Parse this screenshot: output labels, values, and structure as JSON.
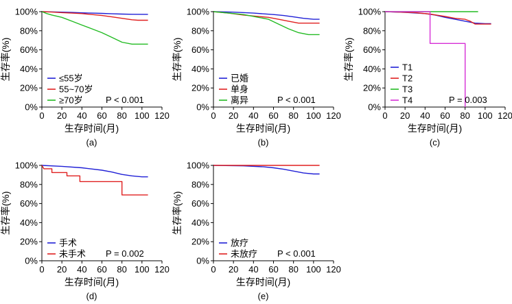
{
  "chart_data": [
    {
      "id": "a",
      "type": "line",
      "panel_label": "(a)",
      "xlabel": "生存时间(月)",
      "ylabel": "生存率(%)",
      "xlim": [
        0,
        120
      ],
      "ylim": [
        0,
        100
      ],
      "x_ticks": [
        "0",
        "20",
        "40",
        "60",
        "80",
        "100",
        "120"
      ],
      "y_ticks": [
        "0%",
        "20%",
        "40%",
        "60%",
        "80%",
        "100%"
      ],
      "p_value": "P < 0.001",
      "legend_position": "bottom-left",
      "series": [
        {
          "name": "≤55岁",
          "color": "#1f1fd6",
          "points": [
            [
              0,
              100
            ],
            [
              10,
              99.8
            ],
            [
              20,
              99.5
            ],
            [
              30,
              99.2
            ],
            [
              40,
              98.8
            ],
            [
              50,
              98.5
            ],
            [
              60,
              98.2
            ],
            [
              70,
              97.8
            ],
            [
              80,
              97.5
            ],
            [
              90,
              97.3
            ],
            [
              106,
              97.2
            ]
          ]
        },
        {
          "name": "55~70岁",
          "color": "#e01f1f",
          "points": [
            [
              0,
              100
            ],
            [
              10,
              99.6
            ],
            [
              20,
              99
            ],
            [
              30,
              98.5
            ],
            [
              40,
              98
            ],
            [
              50,
              97
            ],
            [
              60,
              96
            ],
            [
              70,
              94.5
            ],
            [
              80,
              93
            ],
            [
              90,
              91.5
            ],
            [
              96,
              91
            ],
            [
              106,
              91
            ]
          ]
        },
        {
          "name": "≥70岁",
          "color": "#22bb22",
          "points": [
            [
              0,
              100
            ],
            [
              5,
              98
            ],
            [
              10,
              96.5
            ],
            [
              20,
              94
            ],
            [
              30,
              90
            ],
            [
              40,
              86
            ],
            [
              50,
              82
            ],
            [
              60,
              78
            ],
            [
              70,
              73
            ],
            [
              80,
              68
            ],
            [
              90,
              66
            ],
            [
              106,
              66
            ]
          ]
        }
      ]
    },
    {
      "id": "b",
      "type": "line",
      "panel_label": "(b)",
      "xlabel": "生存时间(月)",
      "ylabel": "生存率(%)",
      "xlim": [
        0,
        120
      ],
      "ylim": [
        0,
        100
      ],
      "x_ticks": [
        "0",
        "20",
        "40",
        "60",
        "80",
        "100",
        "120"
      ],
      "y_ticks": [
        "0%",
        "20%",
        "40%",
        "60%",
        "80%",
        "100%"
      ],
      "p_value": "P < 0.001",
      "legend_position": "bottom-left",
      "series": [
        {
          "name": "已婚",
          "color": "#1f1fd6",
          "points": [
            [
              0,
              100
            ],
            [
              20,
              99.5
            ],
            [
              40,
              98.5
            ],
            [
              60,
              97
            ],
            [
              70,
              96
            ],
            [
              80,
              94.5
            ],
            [
              90,
              93
            ],
            [
              100,
              92
            ],
            [
              106,
              92
            ]
          ]
        },
        {
          "name": "单身",
          "color": "#e01f1f",
          "points": [
            [
              0,
              100
            ],
            [
              15,
              98.5
            ],
            [
              30,
              96.5
            ],
            [
              40,
              95.5
            ],
            [
              55,
              94
            ],
            [
              65,
              92
            ],
            [
              75,
              90
            ],
            [
              85,
              88
            ],
            [
              106,
              88
            ]
          ]
        },
        {
          "name": "离异",
          "color": "#22bb22",
          "points": [
            [
              0,
              100
            ],
            [
              15,
              98.5
            ],
            [
              30,
              97
            ],
            [
              45,
              94
            ],
            [
              55,
              92
            ],
            [
              65,
              87
            ],
            [
              75,
              82
            ],
            [
              85,
              78
            ],
            [
              95,
              76
            ],
            [
              106,
              76
            ]
          ]
        }
      ]
    },
    {
      "id": "c",
      "type": "line",
      "panel_label": "(c)",
      "xlabel": "生存时间(月)",
      "ylabel": "生存率(%)",
      "xlim": [
        0,
        120
      ],
      "ylim": [
        0,
        100
      ],
      "x_ticks": [
        "0",
        "20",
        "40",
        "60",
        "80",
        "100",
        "120"
      ],
      "y_ticks": [
        "0%",
        "20%",
        "40%",
        "60%",
        "80%",
        "100%"
      ],
      "p_value": "P = 0.003",
      "legend_position": "bottom-left",
      "series": [
        {
          "name": "T1",
          "color": "#1f1fd6",
          "points": [
            [
              0,
              100
            ],
            [
              20,
              99.2
            ],
            [
              40,
              98
            ],
            [
              50,
              96.5
            ],
            [
              60,
              94
            ],
            [
              70,
              92
            ],
            [
              80,
              90
            ],
            [
              90,
              88
            ],
            [
              100,
              87.5
            ],
            [
              106,
              87.5
            ]
          ]
        },
        {
          "name": "T2",
          "color": "#e01f1f",
          "points": [
            [
              0,
              100
            ],
            [
              30,
              99
            ],
            [
              45,
              97.5
            ],
            [
              60,
              95
            ],
            [
              70,
              93
            ],
            [
              80,
              92
            ],
            [
              85,
              90
            ],
            [
              90,
              87
            ],
            [
              100,
              87
            ],
            [
              106,
              87
            ]
          ]
        },
        {
          "name": "T3",
          "color": "#22bb22",
          "points": [
            [
              0,
              100
            ],
            [
              93,
              100
            ]
          ]
        },
        {
          "name": "T4",
          "color": "#d62ed6",
          "points": [
            [
              0,
              100
            ],
            [
              45,
              100
            ],
            [
              45,
              66.7
            ],
            [
              80,
              66.7
            ],
            [
              80,
              0
            ]
          ]
        }
      ]
    },
    {
      "id": "d",
      "type": "line",
      "panel_label": "(d)",
      "xlabel": "生存时间(月)",
      "ylabel": "生存率(%)",
      "xlim": [
        0,
        120
      ],
      "ylim": [
        0,
        100
      ],
      "x_ticks": [
        "0",
        "20",
        "40",
        "60",
        "80",
        "100",
        "120"
      ],
      "y_ticks": [
        "0%",
        "20%",
        "40%",
        "60%",
        "80%",
        "100%"
      ],
      "p_value": "P = 0.002",
      "legend_position": "bottom-left",
      "series": [
        {
          "name": "手术",
          "color": "#1f1fd6",
          "points": [
            [
              0,
              100
            ],
            [
              20,
              99
            ],
            [
              40,
              97.5
            ],
            [
              60,
              95
            ],
            [
              70,
              93
            ],
            [
              80,
              90.5
            ],
            [
              90,
              89
            ],
            [
              100,
              88
            ],
            [
              106,
              88
            ]
          ]
        },
        {
          "name": "未手术",
          "color": "#e01f1f",
          "points": [
            [
              0,
              100
            ],
            [
              2,
              96.5
            ],
            [
              10,
              96.5
            ],
            [
              10,
              92.5
            ],
            [
              25,
              92.5
            ],
            [
              25,
              89
            ],
            [
              38,
              89
            ],
            [
              38,
              83
            ],
            [
              55,
              83
            ],
            [
              80,
              83
            ],
            [
              80,
              69
            ],
            [
              106,
              69
            ]
          ]
        }
      ]
    },
    {
      "id": "e",
      "type": "line",
      "panel_label": "(e)",
      "xlabel": "生存时间(月)",
      "ylabel": "生存率(%)",
      "xlim": [
        0,
        120
      ],
      "ylim": [
        0,
        100
      ],
      "x_ticks": [
        "0",
        "20",
        "40",
        "60",
        "80",
        "100",
        "120"
      ],
      "y_ticks": [
        "0%",
        "20%",
        "40%",
        "60%",
        "80%",
        "100%"
      ],
      "p_value": "P < 0.001",
      "legend_position": "bottom-left",
      "series": [
        {
          "name": "放疗",
          "color": "#1f1fd6",
          "points": [
            [
              0,
              100
            ],
            [
              30,
              99.5
            ],
            [
              50,
              98.5
            ],
            [
              60,
              97.5
            ],
            [
              70,
              96
            ],
            [
              80,
              94
            ],
            [
              90,
              92
            ],
            [
              100,
              91
            ],
            [
              106,
              91
            ]
          ]
        },
        {
          "name": "未放疗",
          "color": "#e01f1f",
          "points": [
            [
              0,
              100
            ],
            [
              106,
              100
            ]
          ]
        }
      ]
    }
  ]
}
